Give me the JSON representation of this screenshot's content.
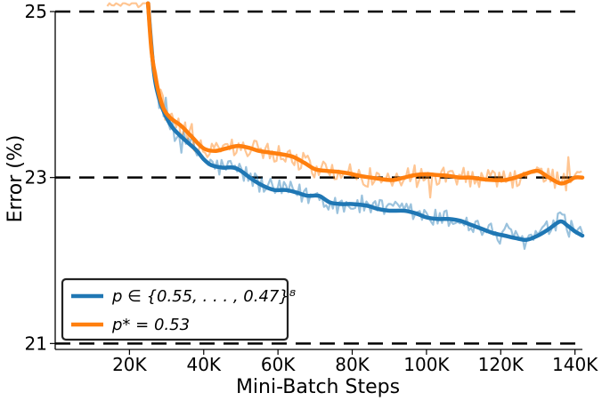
{
  "chart_data": {
    "type": "line",
    "xlabel": "Mini-Batch Steps",
    "ylabel": "Error (%)",
    "xlim": [
      0,
      142000
    ],
    "ylim": [
      20.95,
      25
    ],
    "x_ticks": [
      20000,
      40000,
      60000,
      80000,
      100000,
      120000,
      140000
    ],
    "x_tick_labels": [
      "20K",
      "40K",
      "60K",
      "80K",
      "100K",
      "120K",
      "140K"
    ],
    "y_ticks": [
      21,
      23,
      25
    ],
    "y_tick_labels": [
      "21",
      "23",
      "25"
    ],
    "reference_lines": [
      21,
      23,
      25
    ],
    "grid": false,
    "legend_position": "bottom-left",
    "series": [
      {
        "name": "p ∈ {0.55, . . . , 0.47}⁸",
        "color": "#1f77b4",
        "smoothed": [
          [
            25000,
            25.1
          ],
          [
            26500,
            24.3
          ],
          [
            28000,
            23.95
          ],
          [
            30000,
            23.72
          ],
          [
            32000,
            23.58
          ],
          [
            35000,
            23.45
          ],
          [
            38000,
            23.33
          ],
          [
            40000,
            23.22
          ],
          [
            42000,
            23.15
          ],
          [
            45000,
            23.12
          ],
          [
            48000,
            23.12
          ],
          [
            50000,
            23.08
          ],
          [
            53000,
            22.98
          ],
          [
            56000,
            22.9
          ],
          [
            59000,
            22.85
          ],
          [
            62000,
            22.85
          ],
          [
            65000,
            22.82
          ],
          [
            68000,
            22.78
          ],
          [
            71000,
            22.78
          ],
          [
            74000,
            22.7
          ],
          [
            77000,
            22.68
          ],
          [
            80000,
            22.68
          ],
          [
            84000,
            22.66
          ],
          [
            87000,
            22.62
          ],
          [
            90000,
            22.6
          ],
          [
            94000,
            22.6
          ],
          [
            97000,
            22.57
          ],
          [
            100000,
            22.52
          ],
          [
            103000,
            22.5
          ],
          [
            106000,
            22.5
          ],
          [
            109000,
            22.48
          ],
          [
            112000,
            22.43
          ],
          [
            115000,
            22.38
          ],
          [
            118000,
            22.33
          ],
          [
            121000,
            22.3
          ],
          [
            124000,
            22.27
          ],
          [
            127000,
            22.25
          ],
          [
            130000,
            22.3
          ],
          [
            133000,
            22.38
          ],
          [
            136000,
            22.47
          ],
          [
            138000,
            22.42
          ],
          [
            140000,
            22.35
          ],
          [
            142000,
            22.3
          ]
        ]
      },
      {
        "name": "p* = 0.53",
        "color": "#ff7f0e",
        "smoothed": [
          [
            25000,
            25.1
          ],
          [
            26000,
            24.5
          ],
          [
            27500,
            24.1
          ],
          [
            29000,
            23.85
          ],
          [
            31000,
            23.72
          ],
          [
            34000,
            23.62
          ],
          [
            37000,
            23.48
          ],
          [
            40000,
            23.35
          ],
          [
            43000,
            23.32
          ],
          [
            46000,
            23.35
          ],
          [
            49000,
            23.38
          ],
          [
            52000,
            23.36
          ],
          [
            55000,
            23.32
          ],
          [
            58000,
            23.3
          ],
          [
            61000,
            23.28
          ],
          [
            64000,
            23.25
          ],
          [
            67000,
            23.18
          ],
          [
            70000,
            23.1
          ],
          [
            73000,
            23.08
          ],
          [
            76000,
            23.07
          ],
          [
            79000,
            23.05
          ],
          [
            82000,
            23.02
          ],
          [
            85000,
            23.0
          ],
          [
            88000,
            22.98
          ],
          [
            91000,
            22.97
          ],
          [
            94000,
            23.0
          ],
          [
            97000,
            23.03
          ],
          [
            100000,
            23.04
          ],
          [
            103000,
            23.03
          ],
          [
            106000,
            23.02
          ],
          [
            109000,
            23.0
          ],
          [
            112000,
            23.0
          ],
          [
            115000,
            22.98
          ],
          [
            118000,
            22.97
          ],
          [
            121000,
            22.97
          ],
          [
            124000,
            23.0
          ],
          [
            127000,
            23.05
          ],
          [
            130000,
            23.08
          ],
          [
            133000,
            23.0
          ],
          [
            136000,
            22.93
          ],
          [
            138000,
            22.95
          ],
          [
            140000,
            23.0
          ],
          [
            142000,
            23.0
          ]
        ]
      }
    ]
  },
  "legend": {
    "series_0_label": "p ∈ {0.55, . . . , 0.47}⁸",
    "series_1_label": "p* = 0.53"
  }
}
